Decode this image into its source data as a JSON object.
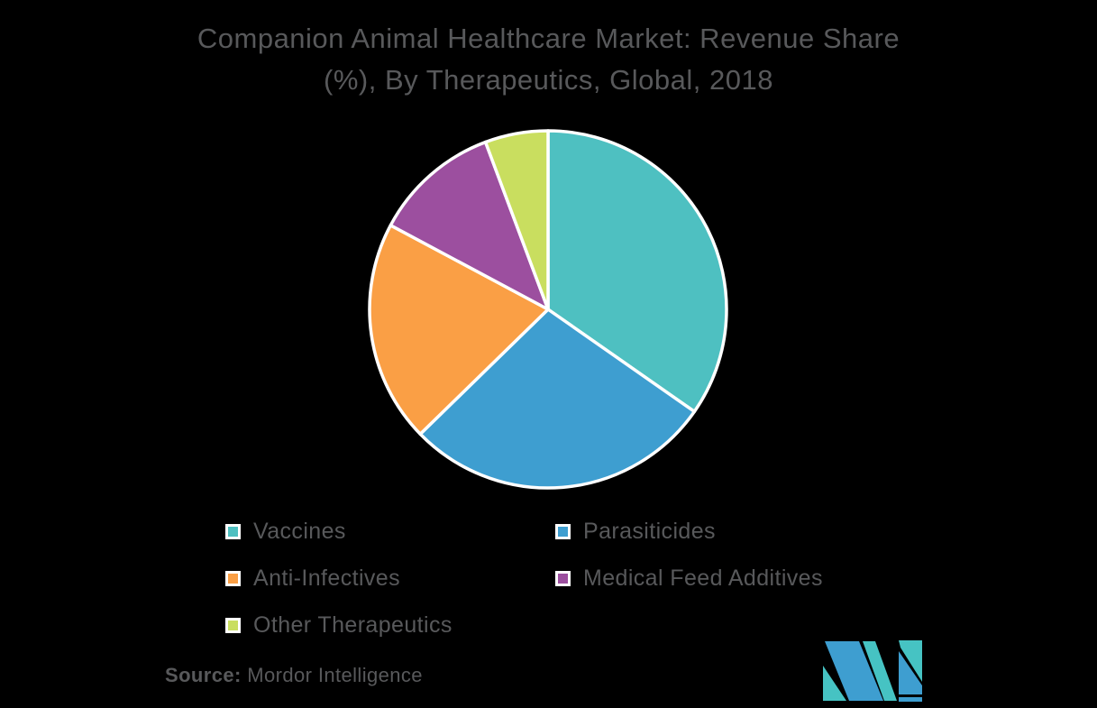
{
  "theme": {
    "background": "#000000",
    "text_color": "#58595B"
  },
  "title": {
    "line1": "Companion Animal Healthcare Market: Revenue Share",
    "line2": "(%), By Therapeutics, Global, 2018"
  },
  "chart_data": {
    "type": "pie",
    "title": "Companion Animal Healthcare Market: Revenue Share (%), By Therapeutics, Global, 2018",
    "categories": [
      "Vaccines",
      "Parasiticides",
      "Anti-Infectives",
      "Medical Feed Additives",
      "Other Therapeutics"
    ],
    "values": [
      34.7,
      28.0,
      20.1,
      11.5,
      5.7
    ],
    "unit": "%",
    "colors": [
      "#4EC0C1",
      "#3E9ED0",
      "#FA9F45",
      "#9C4F9F",
      "#C9DE5F"
    ],
    "start_angle_deg": 0,
    "direction": "clockwise",
    "slice_border_color": "#FFFFFF",
    "legend_position": "bottom-left, two columns",
    "legend_swatch_border": "#FFFFFF",
    "data_labels_shown": false
  },
  "source": {
    "label": "Source:",
    "text": " Mordor Intelligence"
  },
  "logo": {
    "name": "mordor-intelligence-logo",
    "colors": {
      "teal": "#46C3C3",
      "blue": "#3E9ED0"
    }
  }
}
